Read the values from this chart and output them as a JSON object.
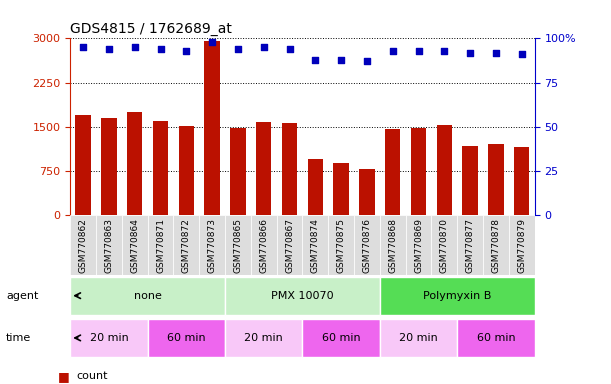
{
  "title": "GDS4815 / 1762689_at",
  "samples": [
    "GSM770862",
    "GSM770863",
    "GSM770864",
    "GSM770871",
    "GSM770872",
    "GSM770873",
    "GSM770865",
    "GSM770866",
    "GSM770867",
    "GSM770874",
    "GSM770875",
    "GSM770876",
    "GSM770868",
    "GSM770869",
    "GSM770870",
    "GSM770877",
    "GSM770878",
    "GSM770879"
  ],
  "counts": [
    1700,
    1640,
    1750,
    1600,
    1520,
    2950,
    1480,
    1580,
    1570,
    950,
    880,
    790,
    1460,
    1470,
    1530,
    1180,
    1200,
    1160
  ],
  "percentiles": [
    95,
    94,
    95,
    94,
    93,
    98,
    94,
    95,
    94,
    88,
    88,
    87,
    93,
    93,
    93,
    92,
    92,
    91
  ],
  "ylim_left": [
    0,
    3000
  ],
  "ylim_right": [
    0,
    100
  ],
  "yticks_left": [
    0,
    750,
    1500,
    2250,
    3000
  ],
  "yticks_right": [
    0,
    25,
    50,
    75,
    100
  ],
  "agent_groups": [
    {
      "label": "none",
      "start": 0,
      "end": 6,
      "color": "#C8F0C8"
    },
    {
      "label": "PMX 10070",
      "start": 6,
      "end": 12,
      "color": "#C8F0C8"
    },
    {
      "label": "Polymyxin B",
      "start": 12,
      "end": 18,
      "color": "#55DD55"
    }
  ],
  "time_groups": [
    {
      "label": "20 min",
      "start": 0,
      "end": 3,
      "color": "#F8C8F8"
    },
    {
      "label": "60 min",
      "start": 3,
      "end": 6,
      "color": "#EE66EE"
    },
    {
      "label": "20 min",
      "start": 6,
      "end": 9,
      "color": "#F8C8F8"
    },
    {
      "label": "60 min",
      "start": 9,
      "end": 12,
      "color": "#EE66EE"
    },
    {
      "label": "20 min",
      "start": 12,
      "end": 15,
      "color": "#F8C8F8"
    },
    {
      "label": "60 min",
      "start": 15,
      "end": 18,
      "color": "#EE66EE"
    }
  ],
  "bar_color": "#BB1100",
  "dot_color": "#0000BB",
  "left_axis_color": "#CC2200",
  "right_axis_color": "#0000CC",
  "bg_color": "#ffffff",
  "plot_bg": "#ffffff",
  "xtick_bg": "#DDDDDD",
  "agent_label_color": "#000000",
  "time_label_color": "#000000"
}
